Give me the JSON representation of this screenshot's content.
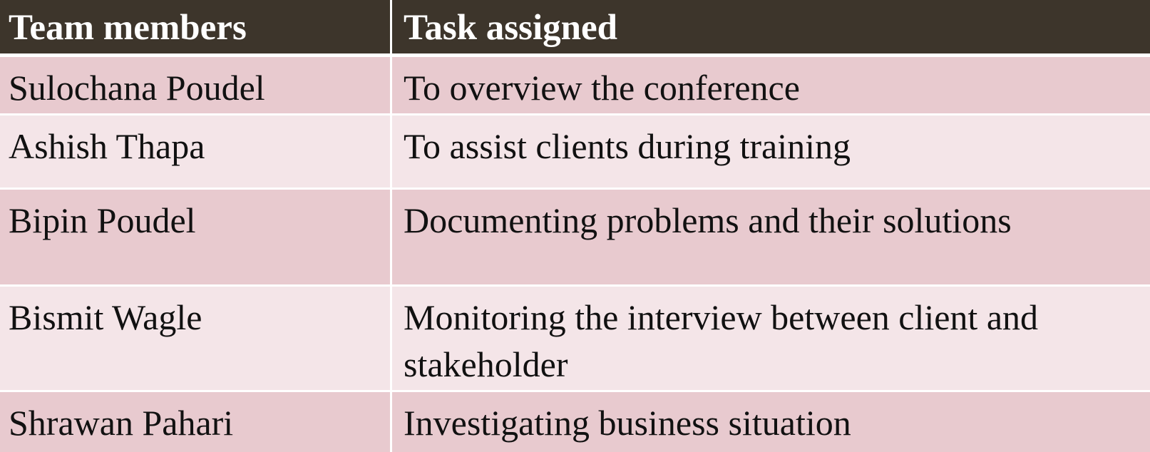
{
  "table": {
    "headers": {
      "member": "Team members",
      "task": "Task assigned"
    },
    "rows": [
      {
        "member": "Sulochana Poudel",
        "task": "To overview the conference"
      },
      {
        "member": "Ashish Thapa",
        "task": "To assist clients during training"
      },
      {
        "member": "Bipin Poudel",
        "task": "Documenting problems and their solutions"
      },
      {
        "member": "Bismit Wagle",
        "task": "Monitoring the interview between client and stakeholder"
      },
      {
        "member": "Shrawan Pahari",
        "task": "Investigating business situation"
      }
    ]
  },
  "colors": {
    "header_bg": "#3d352b",
    "row_dark": "#e8cacf",
    "row_light": "#f4e5e8"
  }
}
